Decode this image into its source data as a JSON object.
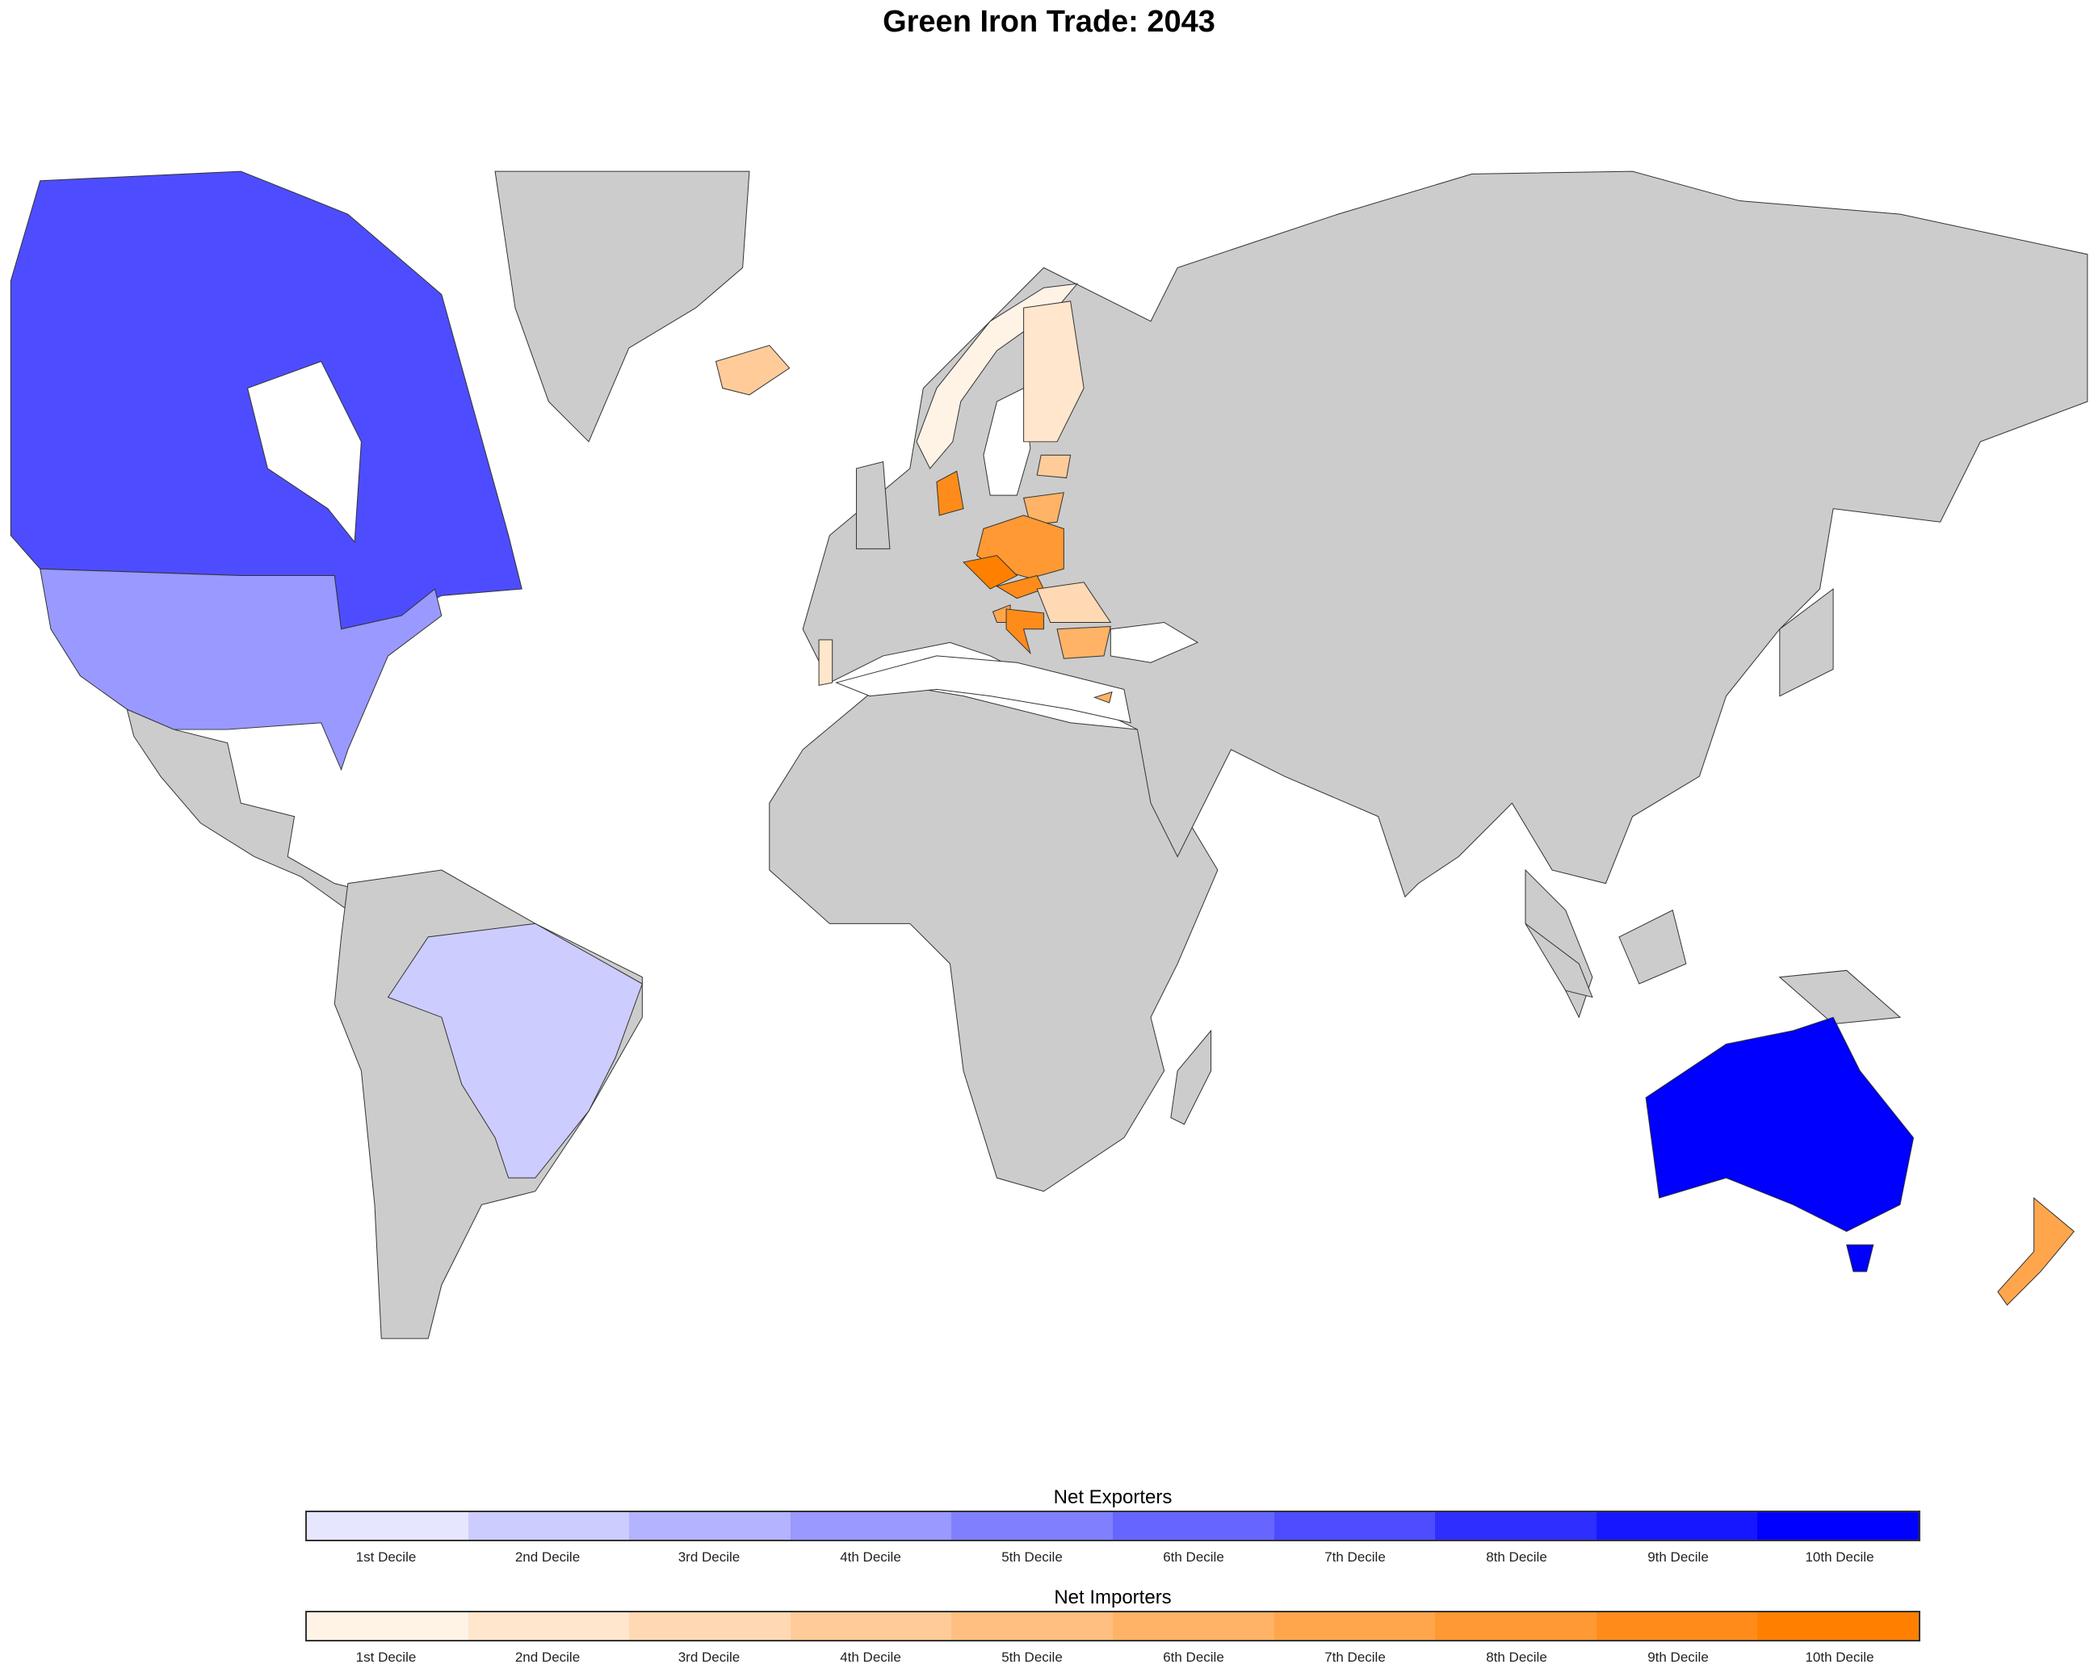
{
  "title": "Green Iron Trade: 2043",
  "chart_data": {
    "type": "choropleth",
    "title": "Green Iron Trade: 2043",
    "missing_color": "#cccccc",
    "legends": [
      {
        "title": "Net Exporters",
        "labels": [
          "1st Decile",
          "2nd Decile",
          "3rd Decile",
          "4th Decile",
          "5th Decile",
          "6th Decile",
          "7th Decile",
          "8th Decile",
          "9th Decile",
          "10th Decile"
        ],
        "colors": [
          "#e6e6ff",
          "#ccccff",
          "#b3b3ff",
          "#9999ff",
          "#8080ff",
          "#6666ff",
          "#4d4dff",
          "#2e2eff",
          "#1717ff",
          "#0000ff"
        ]
      },
      {
        "title": "Net Importers",
        "labels": [
          "1st Decile",
          "2nd Decile",
          "3rd Decile",
          "4th Decile",
          "5th Decile",
          "6th Decile",
          "7th Decile",
          "8th Decile",
          "9th Decile",
          "10th Decile"
        ],
        "colors": [
          "#fff3e6",
          "#ffe6cc",
          "#ffd9b3",
          "#ffcc99",
          "#ffbf80",
          "#ffb366",
          "#ffa64d",
          "#ff9933",
          "#ff8c1a",
          "#ff8000"
        ]
      }
    ],
    "countries": [
      {
        "name": "Canada",
        "group": "Net Exporters",
        "decile": 7
      },
      {
        "name": "United States",
        "group": "Net Exporters",
        "decile": 4
      },
      {
        "name": "Brazil",
        "group": "Net Exporters",
        "decile": 2
      },
      {
        "name": "Australia",
        "group": "Net Exporters",
        "decile": 10
      },
      {
        "name": "Norway",
        "group": "Net Importers",
        "decile": 1
      },
      {
        "name": "Finland",
        "group": "Net Importers",
        "decile": 2
      },
      {
        "name": "Portugal",
        "group": "Net Importers",
        "decile": 2
      },
      {
        "name": "Romania",
        "group": "Net Importers",
        "decile": 3
      },
      {
        "name": "Iceland",
        "group": "Net Importers",
        "decile": 4
      },
      {
        "name": "Estonia",
        "group": "Net Importers",
        "decile": 4
      },
      {
        "name": "Lithuania",
        "group": "Net Importers",
        "decile": 6
      },
      {
        "name": "Bulgaria",
        "group": "Net Importers",
        "decile": 6
      },
      {
        "name": "Cyprus",
        "group": "Net Importers",
        "decile": 6
      },
      {
        "name": "Slovenia",
        "group": "Net Importers",
        "decile": 7
      },
      {
        "name": "New Zealand",
        "group": "Net Importers",
        "decile": 7
      },
      {
        "name": "Poland",
        "group": "Net Importers",
        "decile": 8
      },
      {
        "name": "Denmark",
        "group": "Net Importers",
        "decile": 9
      },
      {
        "name": "Slovakia",
        "group": "Net Importers",
        "decile": 9
      },
      {
        "name": "Croatia",
        "group": "Net Importers",
        "decile": 9
      },
      {
        "name": "Czechia",
        "group": "Net Importers",
        "decile": 10
      }
    ]
  }
}
